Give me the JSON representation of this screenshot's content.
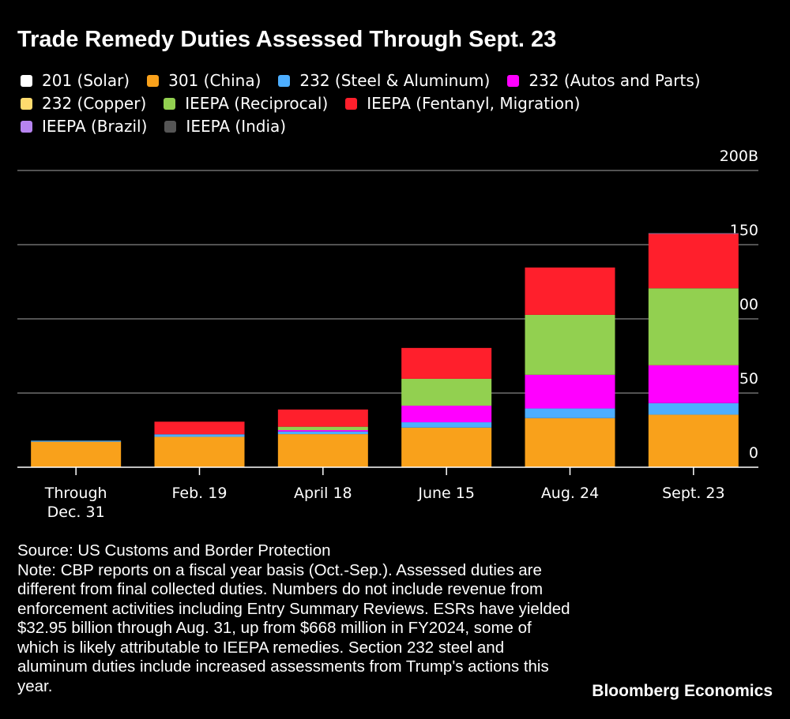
{
  "title": "Trade Remedy Duties Assessed Through Sept. 23",
  "legend_rows": [
    [
      0,
      1,
      2,
      3
    ],
    [
      4,
      5,
      6
    ],
    [
      7,
      8
    ]
  ],
  "chart_data": {
    "type": "bar",
    "stacked": true,
    "title": "Trade Remedy Duties Assessed Through Sept. 23",
    "categories": [
      "Through\nDec. 31",
      "Feb. 19",
      "April 18",
      "June 15",
      "Aug. 24",
      "Sept. 23"
    ],
    "category_labels": [
      [
        "Through",
        "Dec. 31"
      ],
      [
        "Feb. 19"
      ],
      [
        "April 18"
      ],
      [
        "June 15"
      ],
      [
        "Aug. 24"
      ],
      [
        "Sept. 23"
      ]
    ],
    "yticks": [
      0,
      50,
      100,
      150,
      200
    ],
    "ytick_labels": [
      "0",
      "50",
      "100",
      "150",
      "200B"
    ],
    "ylim": [
      0,
      200
    ],
    "unit": "B",
    "grid": true,
    "legend_placement": "top",
    "series": [
      {
        "name": "201 (Solar)",
        "color": "#ffffff",
        "values": [
          0,
          0.1,
          0.1,
          0.1,
          0.1,
          0.1
        ]
      },
      {
        "name": "301 (China)",
        "color": "#f9a11b",
        "values": [
          17.2,
          20.4,
          22.2,
          26.6,
          33.0,
          35.3
        ]
      },
      {
        "name": "232 (Steel & Aluminum)",
        "color": "#4daeff",
        "values": [
          0.7,
          1.7,
          1.8,
          3.6,
          6.5,
          7.8
        ]
      },
      {
        "name": "232 (Autos and Parts)",
        "color": "#ff00ff",
        "values": [
          0,
          0,
          0.9,
          11.2,
          22.7,
          25.5
        ]
      },
      {
        "name": "232 (Copper)",
        "color": "#ffdb6e",
        "values": [
          0,
          0,
          0,
          0,
          0,
          0.3
        ]
      },
      {
        "name": "IEEPA (Reciprocal)",
        "color": "#92d050",
        "values": [
          0,
          0,
          2.3,
          18.1,
          40.4,
          51.6
        ]
      },
      {
        "name": "IEEPA (Fentanyl, Migration)",
        "color": "#ff1f2c",
        "values": [
          0,
          8.5,
          11.6,
          20.8,
          31.9,
          36.7
        ]
      },
      {
        "name": "IEEPA (Brazil)",
        "color": "#b784f0",
        "values": [
          0,
          0,
          0,
          0,
          0,
          0.3
        ]
      },
      {
        "name": "IEEPA (India)",
        "color": "#555555",
        "values": [
          0,
          0,
          0,
          0,
          0,
          0.3
        ]
      }
    ]
  },
  "notes": {
    "source": "Source: US Customs and Border Protection",
    "note": "Note: CBP reports on a fiscal year basis (Oct.-Sep.). Assessed duties are different from final collected duties. Numbers do not include revenue from enforcement activities including Entry Summary Reviews. ESRs have yielded $32.95 billion through Aug. 31, up from $668 million in FY2024, some of which is likely attributable to IEEPA remedies. Section 232 steel and aluminum duties include increased assessments from Trump's actions this year."
  },
  "brand": "Bloomberg Economics"
}
